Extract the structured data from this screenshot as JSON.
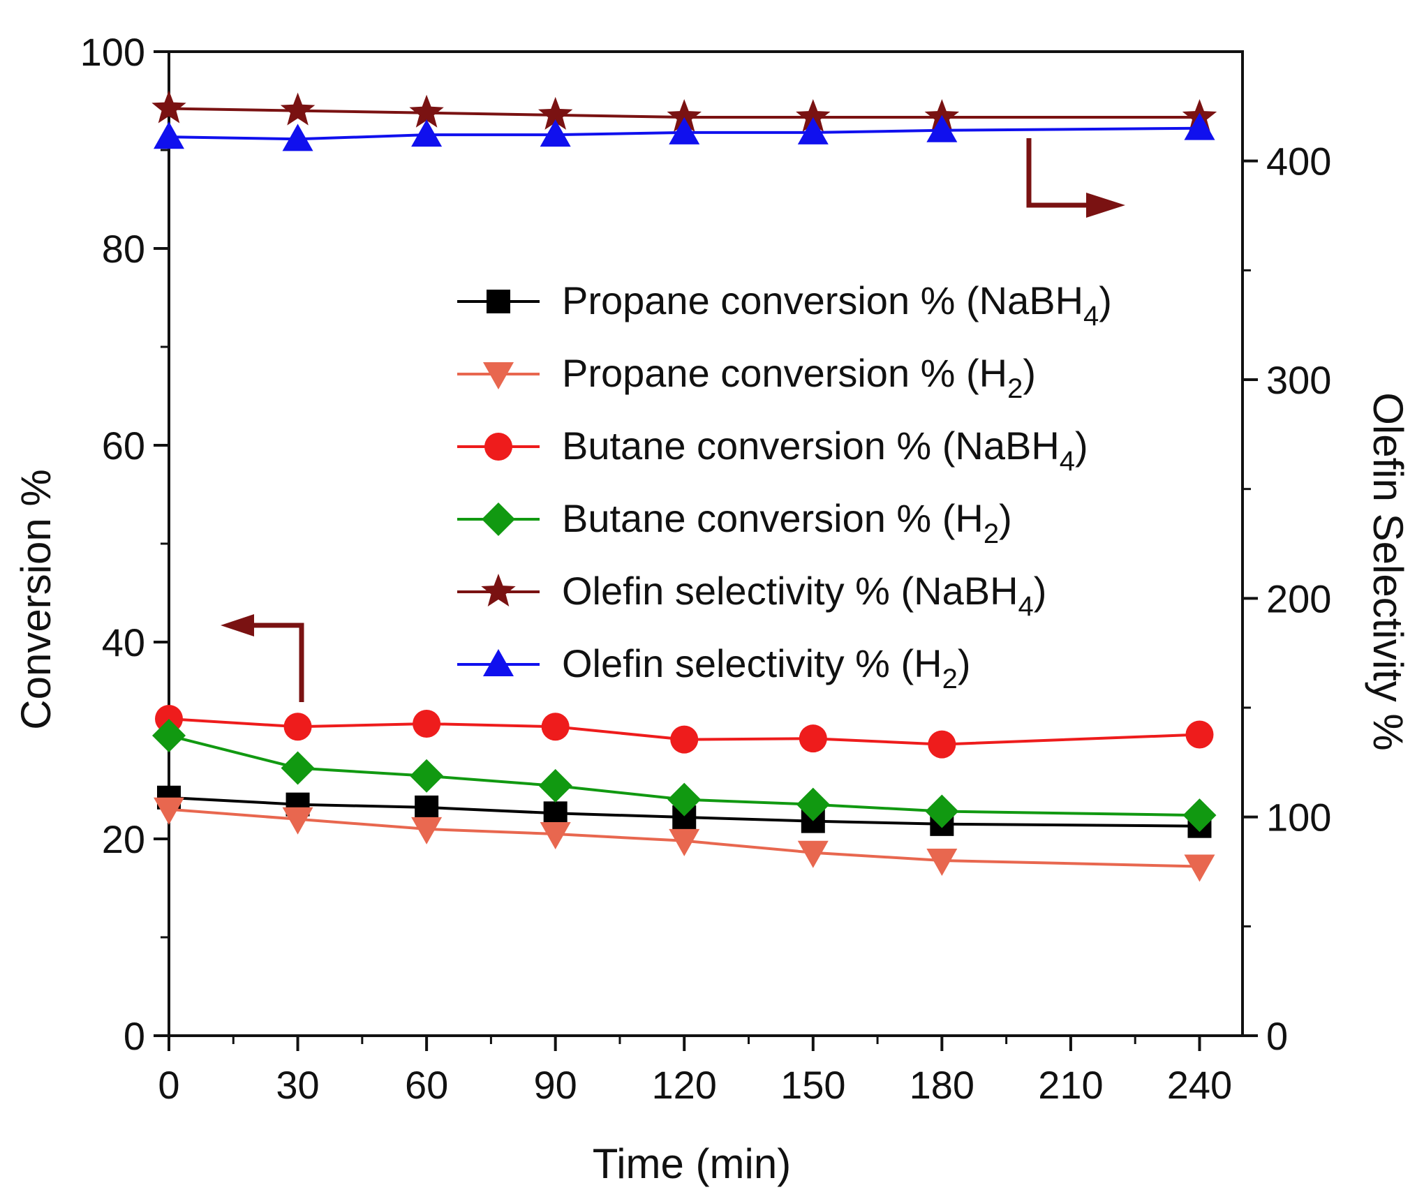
{
  "chart_data": {
    "type": "line",
    "title": "",
    "xlabel": "Time (min)",
    "ylabel": "Conversion %",
    "y2label": "Olefin Selectivity %",
    "xlim": [
      0,
      250
    ],
    "ylim": [
      0,
      100
    ],
    "y2lim": [
      0,
      450
    ],
    "x_ticks": [
      0,
      30,
      60,
      90,
      120,
      150,
      180,
      210,
      240
    ],
    "y_ticks": [
      0,
      20,
      40,
      60,
      80,
      100
    ],
    "y2_ticks": [
      0,
      100,
      200,
      300,
      400
    ],
    "x": [
      0,
      30,
      60,
      90,
      120,
      150,
      180,
      240
    ],
    "legend_position": "center-right",
    "series": [
      {
        "name": "Propane conversion % (NaBH",
        "sub": "4",
        "suffix": ")",
        "axis": "left",
        "color": "#000000",
        "marker": "square",
        "values": [
          24.2,
          23.5,
          23.2,
          22.6,
          22.2,
          21.8,
          21.5,
          21.3
        ]
      },
      {
        "name": "Propane conversion % (H",
        "sub": "2",
        "suffix": ")",
        "axis": "left",
        "color": "#e8674f",
        "marker": "triangle-down",
        "values": [
          23.0,
          22.0,
          21.0,
          20.5,
          19.8,
          18.6,
          17.8,
          17.2
        ]
      },
      {
        "name": "Butane conversion % (NaBH",
        "sub": "4",
        "suffix": ")",
        "axis": "left",
        "color": "#ee1c1c",
        "marker": "circle",
        "values": [
          32.2,
          31.4,
          31.7,
          31.4,
          30.1,
          30.2,
          29.6,
          30.6
        ]
      },
      {
        "name": "Butane conversion % (H",
        "sub": "2",
        "suffix": ")",
        "axis": "left",
        "color": "#119911",
        "marker": "diamond",
        "values": [
          30.5,
          27.2,
          26.4,
          25.4,
          24.0,
          23.5,
          22.8,
          22.4
        ]
      },
      {
        "name": "Olefin selectivity % (NaBH",
        "sub": "4",
        "suffix": ")",
        "axis": "right",
        "color": "#7a1212",
        "marker": "star",
        "values": [
          424,
          423,
          422,
          421,
          420,
          420,
          420,
          420
        ]
      },
      {
        "name": "Olefin selectivity % (H",
        "sub": "2",
        "suffix": ")",
        "axis": "right",
        "color": "#1010ee",
        "marker": "triangle-up",
        "values": [
          411,
          410,
          412,
          412,
          413,
          413,
          414,
          415
        ]
      }
    ],
    "annotations": [
      {
        "kind": "arrow",
        "points_to": "left-axis",
        "color": "#7a1212"
      },
      {
        "kind": "arrow",
        "points_to": "right-axis",
        "color": "#7a1212"
      }
    ]
  }
}
